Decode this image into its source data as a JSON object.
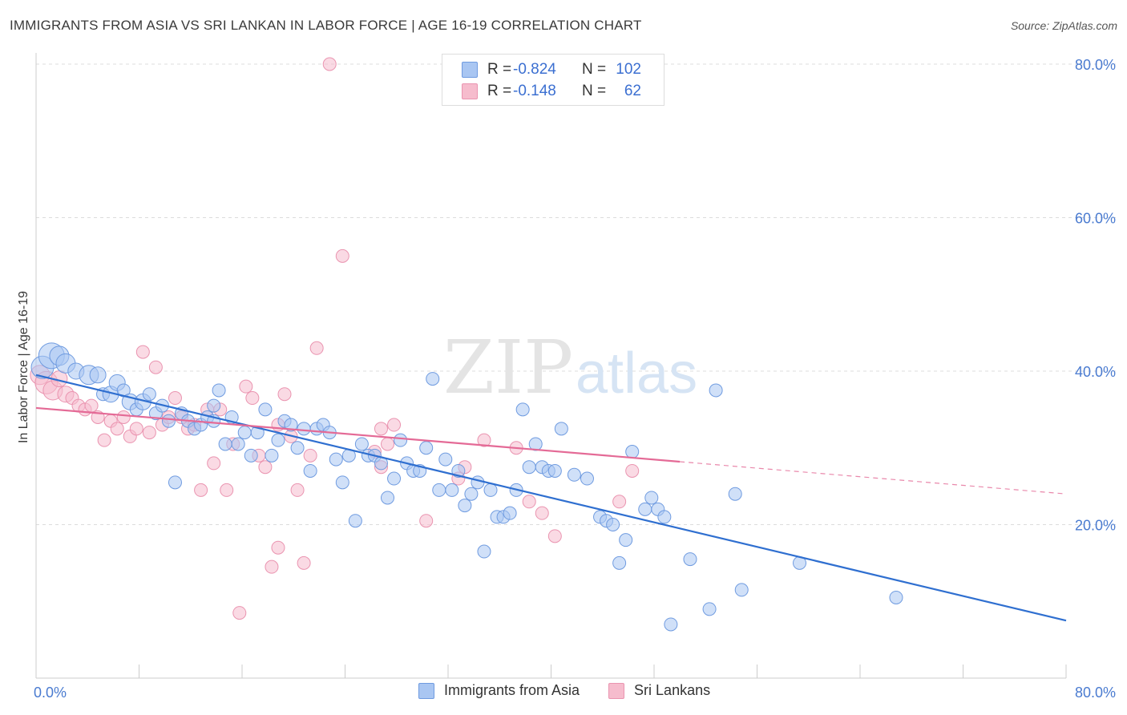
{
  "title": "IMMIGRANTS FROM ASIA VS SRI LANKAN IN LABOR FORCE | AGE 16-19 CORRELATION CHART",
  "source": "Source: ZipAtlas.com",
  "watermark": {
    "zip": "ZIP",
    "atlas": "atlas"
  },
  "colors": {
    "blue_fill": "#a9c6f2",
    "blue_stroke": "#6f9be0",
    "blue_line": "#2f6fd0",
    "pink_fill": "#f6bccd",
    "pink_stroke": "#ea94b0",
    "pink_line": "#e46a96",
    "accent_text": "#3b6fd1",
    "grid": "#dcdcdc"
  },
  "legend_top": {
    "rows": [
      {
        "r_label": "R =",
        "r_value": "-0.824",
        "n_label": "N =",
        "n_value": "102"
      },
      {
        "r_label": "R =",
        "r_value": "-0.148",
        "n_label": "N =",
        "n_value": "62"
      }
    ]
  },
  "legend_bottom": {
    "items": [
      {
        "label": "Immigrants from Asia"
      },
      {
        "label": "Sri Lankans"
      }
    ]
  },
  "chart_data": {
    "type": "scatter",
    "title": "IMMIGRANTS FROM ASIA VS SRI LANKAN IN LABOR FORCE | AGE 16-19 CORRELATION CHART",
    "xlabel": "",
    "ylabel": "In Labor Force | Age 16-19",
    "xlim": [
      0,
      80
    ],
    "ylim": [
      0,
      80
    ],
    "x_tick_labels": [
      "0.0%",
      "80.0%"
    ],
    "y_tick_labels": [
      "20.0%",
      "40.0%",
      "60.0%",
      "80.0%"
    ],
    "y_ticks": [
      20,
      40,
      60,
      80
    ],
    "grid": true,
    "legend_position": "top-center",
    "series": [
      {
        "name": "Immigrants from Asia",
        "color": "#a9c6f2",
        "trend": {
          "x": [
            0,
            80
          ],
          "y": [
            39.5,
            7.5
          ]
        },
        "points": [
          [
            0.5,
            40.5,
            14
          ],
          [
            1.2,
            42,
            16
          ],
          [
            1.8,
            42,
            12
          ],
          [
            2.3,
            41,
            12
          ],
          [
            3.1,
            40,
            10
          ],
          [
            4.1,
            39.5,
            12
          ],
          [
            4.8,
            39.5,
            10
          ],
          [
            5.2,
            37,
            8
          ],
          [
            5.8,
            37,
            10
          ],
          [
            6.3,
            38.5,
            10
          ],
          [
            6.8,
            37.5,
            8
          ],
          [
            7.3,
            36,
            10
          ],
          [
            7.8,
            35,
            8
          ],
          [
            8.3,
            36,
            10
          ],
          [
            8.8,
            37,
            8
          ],
          [
            9.3,
            34.5,
            8
          ],
          [
            9.8,
            35.5,
            8
          ],
          [
            10.3,
            33.5,
            8
          ],
          [
            10.8,
            25.5,
            8
          ],
          [
            11.3,
            34.5,
            8
          ],
          [
            11.8,
            33.5,
            8
          ],
          [
            12.3,
            32.5,
            8
          ],
          [
            12.8,
            33,
            8
          ],
          [
            13.3,
            34,
            8
          ],
          [
            13.8,
            35.5,
            8
          ],
          [
            14.2,
            37.5,
            8
          ],
          [
            14.7,
            30.5,
            8
          ],
          [
            15.2,
            34,
            8
          ],
          [
            15.7,
            30.5,
            8
          ],
          [
            16.2,
            32,
            8
          ],
          [
            16.7,
            29,
            8
          ],
          [
            17.2,
            32,
            8
          ],
          [
            17.8,
            35,
            8
          ],
          [
            18.3,
            29,
            8
          ],
          [
            18.8,
            31,
            8
          ],
          [
            19.3,
            33.5,
            8
          ],
          [
            19.8,
            33,
            8
          ],
          [
            20.3,
            30,
            8
          ],
          [
            20.8,
            32.5,
            8
          ],
          [
            21.3,
            27,
            8
          ],
          [
            21.8,
            32.5,
            8
          ],
          [
            22.3,
            33,
            8
          ],
          [
            22.8,
            32,
            8
          ],
          [
            23.3,
            28.5,
            8
          ],
          [
            23.8,
            25.5,
            8
          ],
          [
            24.3,
            29,
            8
          ],
          [
            24.8,
            20.5,
            8
          ],
          [
            25.3,
            30.5,
            8
          ],
          [
            25.8,
            29,
            8
          ],
          [
            26.3,
            29,
            8
          ],
          [
            26.8,
            28,
            8
          ],
          [
            27.3,
            23.5,
            8
          ],
          [
            27.8,
            26,
            8
          ],
          [
            28.3,
            31,
            8
          ],
          [
            28.8,
            28,
            8
          ],
          [
            29.3,
            27,
            8
          ],
          [
            29.8,
            27,
            8
          ],
          [
            30.3,
            30,
            8
          ],
          [
            30.8,
            39,
            8
          ],
          [
            31.3,
            24.5,
            8
          ],
          [
            31.8,
            28.5,
            8
          ],
          [
            32.3,
            24.5,
            8
          ],
          [
            32.8,
            27,
            8
          ],
          [
            33.3,
            22.5,
            8
          ],
          [
            33.8,
            24,
            8
          ],
          [
            34.3,
            25.5,
            8
          ],
          [
            34.8,
            16.5,
            8
          ],
          [
            35.3,
            24.5,
            8
          ],
          [
            35.8,
            21,
            8
          ],
          [
            36.3,
            21,
            8
          ],
          [
            36.8,
            21.5,
            8
          ],
          [
            37.3,
            24.5,
            8
          ],
          [
            37.8,
            35,
            8
          ],
          [
            38.3,
            27.5,
            8
          ],
          [
            38.8,
            30.5,
            8
          ],
          [
            39.3,
            27.5,
            8
          ],
          [
            39.8,
            27,
            8
          ],
          [
            40.3,
            27,
            8
          ],
          [
            40.8,
            32.5,
            8
          ],
          [
            41.8,
            26.5,
            8
          ],
          [
            42.8,
            26,
            8
          ],
          [
            43.8,
            21,
            8
          ],
          [
            44.3,
            20.5,
            8
          ],
          [
            44.8,
            20,
            8
          ],
          [
            45.3,
            15,
            8
          ],
          [
            45.8,
            18,
            8
          ],
          [
            46.3,
            29.5,
            8
          ],
          [
            47.3,
            22,
            8
          ],
          [
            47.8,
            23.5,
            8
          ],
          [
            48.3,
            22,
            8
          ],
          [
            48.8,
            21,
            8
          ],
          [
            49.3,
            7,
            8
          ],
          [
            50.8,
            15.5,
            8
          ],
          [
            52.3,
            9,
            8
          ],
          [
            52.8,
            37.5,
            8
          ],
          [
            54.3,
            24,
            8
          ],
          [
            54.8,
            11.5,
            8
          ],
          [
            59.3,
            15,
            8
          ],
          [
            66.8,
            10.5,
            8
          ],
          [
            13.8,
            33.5,
            8
          ]
        ]
      },
      {
        "name": "Sri Lankans",
        "color": "#f6bccd",
        "trend": {
          "x": [
            0,
            50
          ],
          "y": [
            35.2,
            28.2
          ]
        },
        "trend_dashed": {
          "x": [
            50,
            80
          ],
          "y": [
            28.2,
            24
          ]
        },
        "points": [
          [
            0.3,
            39.5,
            12
          ],
          [
            0.8,
            38.5,
            14
          ],
          [
            1.3,
            37.5,
            12
          ],
          [
            1.8,
            39,
            10
          ],
          [
            2.3,
            37,
            10
          ],
          [
            2.8,
            36.5,
            8
          ],
          [
            3.3,
            35.5,
            8
          ],
          [
            3.8,
            35,
            8
          ],
          [
            4.3,
            35.5,
            8
          ],
          [
            4.8,
            34,
            8
          ],
          [
            5.3,
            31,
            8
          ],
          [
            5.8,
            33.5,
            8
          ],
          [
            6.3,
            32.5,
            8
          ],
          [
            6.8,
            34,
            8
          ],
          [
            7.3,
            31.5,
            8
          ],
          [
            7.8,
            32.5,
            8
          ],
          [
            8.3,
            42.5,
            8
          ],
          [
            8.8,
            32,
            8
          ],
          [
            9.3,
            40.5,
            8
          ],
          [
            9.8,
            33,
            8
          ],
          [
            10.3,
            34,
            8
          ],
          [
            10.8,
            36.5,
            8
          ],
          [
            11.3,
            34,
            8
          ],
          [
            11.8,
            32.5,
            8
          ],
          [
            12.3,
            33,
            8
          ],
          [
            12.8,
            24.5,
            8
          ],
          [
            13.3,
            35,
            8
          ],
          [
            13.8,
            28,
            8
          ],
          [
            14.3,
            35,
            8
          ],
          [
            14.8,
            24.5,
            8
          ],
          [
            15.3,
            30.5,
            8
          ],
          [
            15.8,
            8.5,
            8
          ],
          [
            16.3,
            38,
            8
          ],
          [
            16.8,
            36.5,
            8
          ],
          [
            17.3,
            29,
            8
          ],
          [
            17.8,
            27.5,
            8
          ],
          [
            18.3,
            14.5,
            8
          ],
          [
            18.8,
            17,
            8
          ],
          [
            19.3,
            37,
            8
          ],
          [
            19.8,
            31.5,
            8
          ],
          [
            20.3,
            24.5,
            8
          ],
          [
            20.8,
            15,
            8
          ],
          [
            21.3,
            29,
            8
          ],
          [
            21.8,
            43,
            8
          ],
          [
            22.8,
            80,
            8
          ],
          [
            23.8,
            55,
            8
          ],
          [
            26.3,
            29.5,
            8
          ],
          [
            26.8,
            32.5,
            8
          ],
          [
            27.3,
            30.5,
            8
          ],
          [
            27.8,
            33,
            8
          ],
          [
            30.3,
            20.5,
            8
          ],
          [
            33.3,
            27.5,
            8
          ],
          [
            34.8,
            31,
            8
          ],
          [
            37.3,
            30,
            8
          ],
          [
            38.3,
            23,
            8
          ],
          [
            39.3,
            21.5,
            8
          ],
          [
            40.3,
            18.5,
            8
          ],
          [
            45.3,
            23,
            8
          ],
          [
            46.3,
            27,
            8
          ],
          [
            32.8,
            26,
            8
          ],
          [
            26.8,
            27.5,
            8
          ],
          [
            18.8,
            33,
            8
          ]
        ]
      }
    ]
  }
}
